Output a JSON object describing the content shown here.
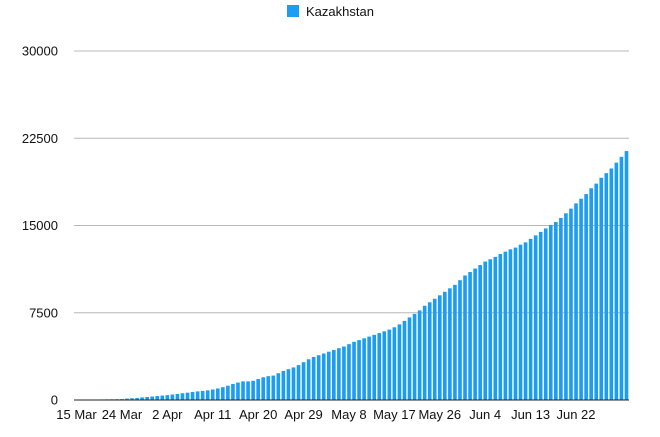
{
  "chart_data": {
    "type": "bar",
    "legend": {
      "position": "top-center",
      "entries": [
        "Kazakhstan"
      ]
    },
    "series": [
      {
        "name": "Kazakhstan",
        "color": "#1a9df2",
        "start_date": "2020-03-15",
        "values": [
          10,
          20,
          35,
          40,
          45,
          50,
          55,
          62,
          70,
          80,
          120,
          150,
          180,
          220,
          260,
          300,
          340,
          380,
          420,
          470,
          520,
          580,
          630,
          690,
          740,
          780,
          830,
          900,
          990,
          1100,
          1230,
          1380,
          1500,
          1600,
          1600,
          1650,
          1800,
          1950,
          2050,
          2100,
          2300,
          2500,
          2650,
          2800,
          3000,
          3250,
          3500,
          3700,
          3850,
          4000,
          4150,
          4300,
          4450,
          4600,
          4800,
          5000,
          5150,
          5300,
          5450,
          5600,
          5750,
          5900,
          6050,
          6250,
          6500,
          6800,
          7100,
          7400,
          7700,
          8100,
          8400,
          8700,
          9000,
          9300,
          9600,
          9900,
          10300,
          10700,
          11000,
          11300,
          11600,
          11900,
          12100,
          12300,
          12550,
          12750,
          12950,
          13100,
          13350,
          13550,
          13850,
          14150,
          14450,
          14750,
          15050,
          15300,
          15650,
          16050,
          16450,
          16900,
          17300,
          17700,
          18200,
          18600,
          19100,
          19500,
          19900,
          20400,
          20900,
          21400
        ]
      }
    ],
    "x_tick_labels": [
      "15 Mar",
      "24 Mar",
      "2 Apr",
      "Apr 11",
      "Apr 20",
      "Apr 29",
      "May 8",
      "May 17",
      "May 26",
      "Jun 4",
      "Jun 13",
      "Jun 22"
    ],
    "x_tick_positions": [
      0,
      9,
      18,
      27,
      36,
      45,
      54,
      63,
      72,
      81,
      90,
      99
    ],
    "y_ticks": [
      0,
      7500,
      15000,
      22500,
      30000
    ],
    "ylim": [
      0,
      30000
    ],
    "grid": true,
    "title": "",
    "xlabel": "",
    "ylabel": ""
  }
}
